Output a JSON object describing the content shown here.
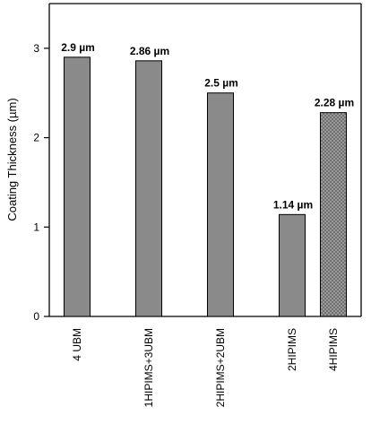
{
  "chart_data": {
    "type": "bar",
    "categories": [
      "4 UBM",
      "1HIPIMS+3UBM",
      "2HIPIMS+2UBM",
      "2HIPIMS",
      "4HIPIMS"
    ],
    "values": [
      2.9,
      2.86,
      2.5,
      1.14,
      2.28
    ],
    "data_labels": [
      "2.9 µm",
      "2.86 µm",
      "2.5 µm",
      "1.14 µm",
      "2.28 µm"
    ],
    "title": "",
    "xlabel": "",
    "ylabel": "Coating Thickness (µm)",
    "ylim": [
      0,
      3.5
    ],
    "yticks": [
      0,
      1,
      2,
      3
    ],
    "ytick_labels": [
      "0",
      "1",
      "2",
      "3"
    ],
    "grid": false,
    "legend": "none",
    "bar_fill_colors": [
      "#8a8a8a",
      "#8a8a8a",
      "#8a8a8a",
      "#8a8a8a",
      "#6f6f6f"
    ],
    "bar_patterns": [
      "solid",
      "solid",
      "solid",
      "solid",
      "dotted"
    ],
    "bar_edge_color": "#000000"
  }
}
